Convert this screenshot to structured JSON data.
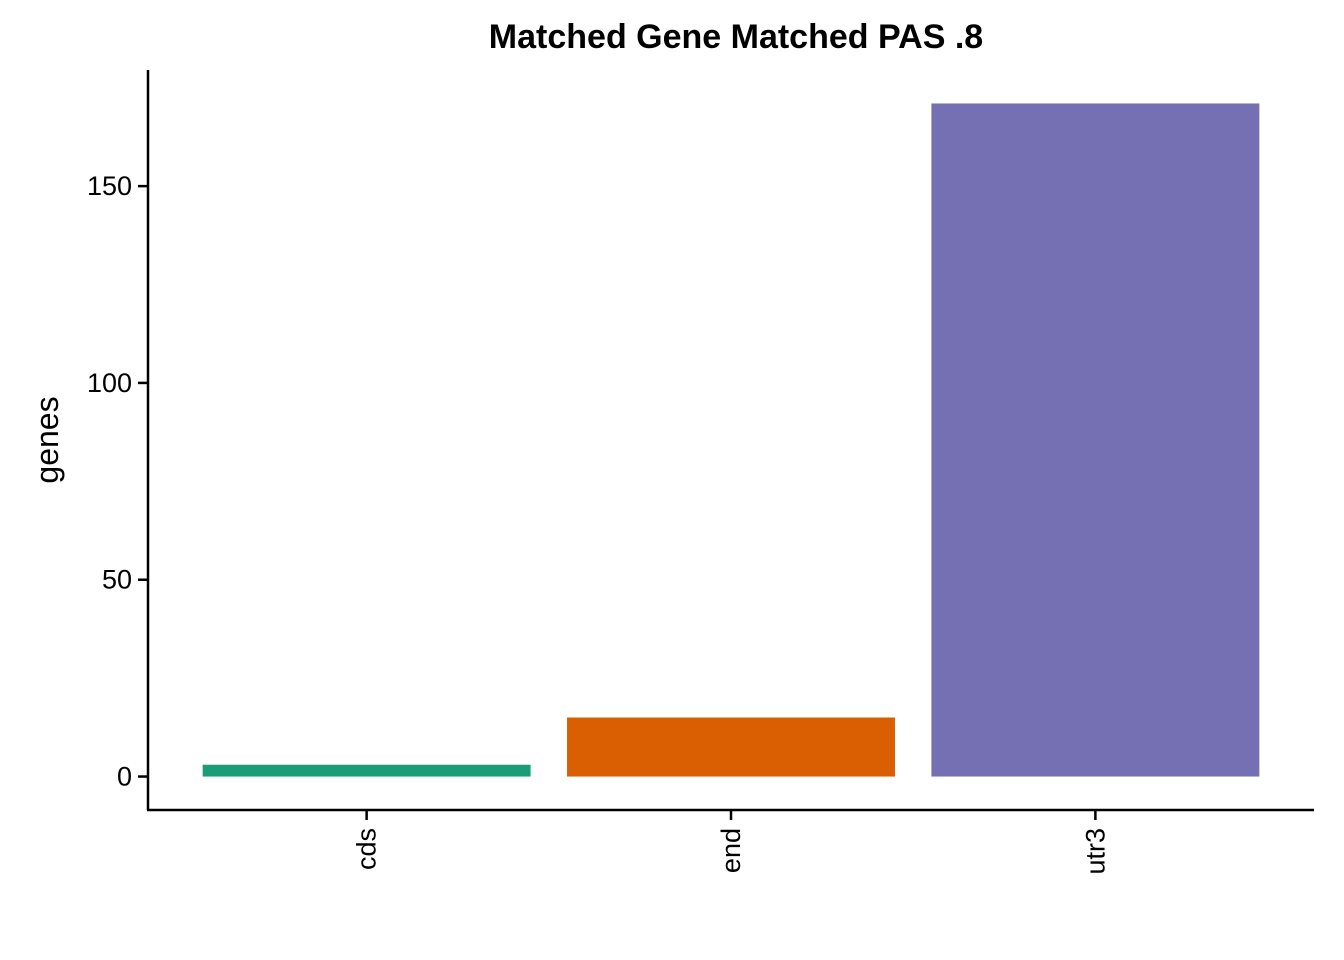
{
  "chart_data": {
    "type": "bar",
    "title": "Matched Gene Matched PAS .8",
    "xlabel": "",
    "ylabel": "genes",
    "categories": [
      "cds",
      "end",
      "utr3"
    ],
    "values": [
      3,
      15,
      171
    ],
    "colors": [
      "#1b9e77",
      "#d95f02",
      "#7570b3"
    ],
    "ylim": [
      -8.5,
      179.5
    ],
    "yticks": [
      0,
      50,
      100,
      150
    ],
    "x_tick_rotation": -90,
    "grid": false,
    "legend": "none"
  }
}
